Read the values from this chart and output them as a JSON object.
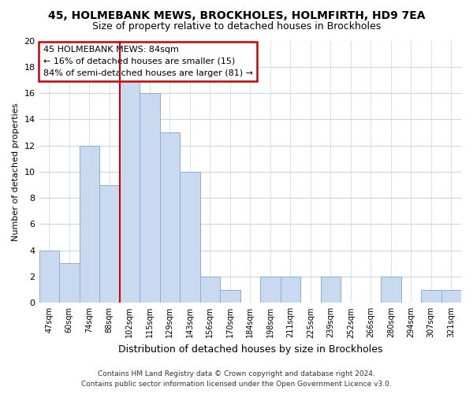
{
  "title": "45, HOLMEBANK MEWS, BROCKHOLES, HOLMFIRTH, HD9 7EA",
  "subtitle": "Size of property relative to detached houses in Brockholes",
  "xlabel": "Distribution of detached houses by size in Brockholes",
  "ylabel": "Number of detached properties",
  "bar_labels": [
    "47sqm",
    "60sqm",
    "74sqm",
    "88sqm",
    "102sqm",
    "115sqm",
    "129sqm",
    "143sqm",
    "156sqm",
    "170sqm",
    "184sqm",
    "198sqm",
    "211sqm",
    "225sqm",
    "239sqm",
    "252sqm",
    "266sqm",
    "280sqm",
    "294sqm",
    "307sqm",
    "321sqm"
  ],
  "bar_values": [
    4,
    3,
    12,
    9,
    17,
    16,
    13,
    10,
    2,
    1,
    0,
    2,
    2,
    0,
    2,
    0,
    0,
    2,
    0,
    1,
    1
  ],
  "bar_color": "#c9d9f0",
  "bar_edge_color": "#8aafd4",
  "vline_x": 3.5,
  "vline_color": "#cc0000",
  "ylim": [
    0,
    20
  ],
  "yticks": [
    0,
    2,
    4,
    6,
    8,
    10,
    12,
    14,
    16,
    18,
    20
  ],
  "annotation_title": "45 HOLMEBANK MEWS: 84sqm",
  "annotation_line1": "← 16% of detached houses are smaller (15)",
  "annotation_line2": "84% of semi-detached houses are larger (81) →",
  "footer1": "Contains HM Land Registry data © Crown copyright and database right 2024.",
  "footer2": "Contains public sector information licensed under the Open Government Licence v3.0.",
  "bg_color": "#ffffff",
  "grid_color": "#c8d4e8"
}
